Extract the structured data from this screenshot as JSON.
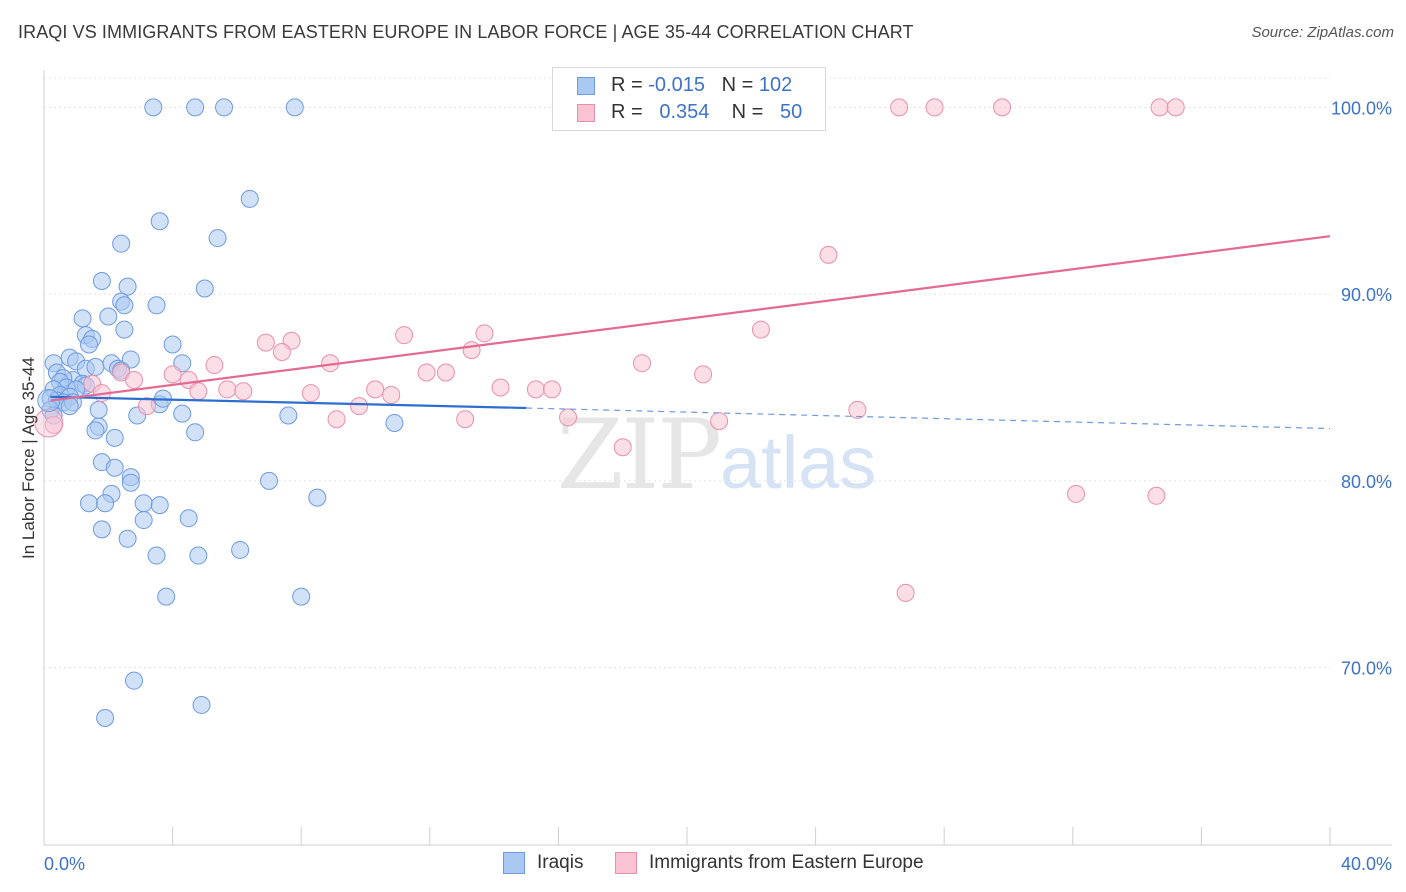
{
  "header": {
    "title": "IRAQI VS IMMIGRANTS FROM EASTERN EUROPE IN LABOR FORCE | AGE 35-44 CORRELATION CHART",
    "source": "Source: ZipAtlas.com"
  },
  "watermark": {
    "zip": "ZIP",
    "atlas": "atlas"
  },
  "legend": {
    "rows": [
      {
        "r_label": "R =",
        "r_value": "-0.015",
        "n_label": "N =",
        "n_value": "102",
        "color": "#a9c8f2",
        "border": "#6e9be0"
      },
      {
        "r_label": "R =",
        "r_value": "0.354",
        "n_label": "N =",
        "n_value": "50",
        "color": "#f9c3d4",
        "border": "#e890ab"
      }
    ]
  },
  "bottom_legend": {
    "items": [
      {
        "label": "Iraqis",
        "color": "#a9c8f2",
        "border": "#6e9be0"
      },
      {
        "label": "Immigrants from Eastern Europe",
        "color": "#f9c3d4",
        "border": "#e890ab"
      }
    ]
  },
  "chart_data": {
    "type": "scatter",
    "title": "IRAQI VS IMMIGRANTS FROM EASTERN EUROPE IN LABOR FORCE | AGE 35-44 CORRELATION CHART",
    "xlabel": "",
    "ylabel": "In Labor Force | Age 35-44",
    "xlim": [
      0,
      40
    ],
    "ylim": [
      60.5,
      102
    ],
    "x_tick_labels": [
      {
        "value": 0,
        "label": "0.0%"
      },
      {
        "value": 40,
        "label": "40.0%"
      }
    ],
    "y_tick_labels": [
      {
        "value": 100,
        "label": "100.0%"
      },
      {
        "value": 90,
        "label": "90.0%"
      },
      {
        "value": 80,
        "label": "80.0%"
      },
      {
        "value": 70,
        "label": "70.0%"
      }
    ],
    "grid": true,
    "series": [
      {
        "name": "Iraqis",
        "color": "#6e9be0",
        "fill": "#a9c8f2",
        "trend": {
          "x0": 0.2,
          "y0": 84.5,
          "x1": 15,
          "y1": 83.9,
          "dash_to_x": 40,
          "dash_to_y": 82.8
        },
        "points": [
          [
            3.4,
            100
          ],
          [
            4.7,
            100
          ],
          [
            5.6,
            100
          ],
          [
            7.8,
            100
          ],
          [
            6.4,
            95.1
          ],
          [
            3.6,
            93.9
          ],
          [
            5.4,
            93
          ],
          [
            2.4,
            92.7
          ],
          [
            1.8,
            90.7
          ],
          [
            2.6,
            90.4
          ],
          [
            5.0,
            90.3
          ],
          [
            2.4,
            89.6
          ],
          [
            2.0,
            88.8
          ],
          [
            2.5,
            89.4
          ],
          [
            3.5,
            89.4
          ],
          [
            1.2,
            88.7
          ],
          [
            2.5,
            88.1
          ],
          [
            1.3,
            87.8
          ],
          [
            1.5,
            87.6
          ],
          [
            4.0,
            87.3
          ],
          [
            1.4,
            87.3
          ],
          [
            0.3,
            86.3
          ],
          [
            0.8,
            86.6
          ],
          [
            2.7,
            86.5
          ],
          [
            1.0,
            86.4
          ],
          [
            1.3,
            86.0
          ],
          [
            1.6,
            86.1
          ],
          [
            2.1,
            86.3
          ],
          [
            2.3,
            86.0
          ],
          [
            2.4,
            85.9
          ],
          [
            4.3,
            86.3
          ],
          [
            0.4,
            85.8
          ],
          [
            0.9,
            85.4
          ],
          [
            0.6,
            85.5
          ],
          [
            0.5,
            85.3
          ],
          [
            1.2,
            85.2
          ],
          [
            1.3,
            85.1
          ],
          [
            0.7,
            85.0
          ],
          [
            0.3,
            84.9
          ],
          [
            1.0,
            84.9
          ],
          [
            0.5,
            84.6
          ],
          [
            0.8,
            84.5
          ],
          [
            0.2,
            84.4
          ],
          [
            0.4,
            84.3
          ],
          [
            0.6,
            84.2
          ],
          [
            0.9,
            84.2
          ],
          [
            0.8,
            84.0
          ],
          [
            0.2,
            83.8
          ],
          [
            0.3,
            83.5
          ],
          [
            1.7,
            83.8
          ],
          [
            2.9,
            83.5
          ],
          [
            3.6,
            84.1
          ],
          [
            3.7,
            84.4
          ],
          [
            4.3,
            83.6
          ],
          [
            7.6,
            83.5
          ],
          [
            10.9,
            83.1
          ],
          [
            1.7,
            82.9
          ],
          [
            1.6,
            82.7
          ],
          [
            2.2,
            82.3
          ],
          [
            4.7,
            82.6
          ],
          [
            1.8,
            81.0
          ],
          [
            2.2,
            80.7
          ],
          [
            2.7,
            80.2
          ],
          [
            2.7,
            79.9
          ],
          [
            7.0,
            80.0
          ],
          [
            2.1,
            79.3
          ],
          [
            8.5,
            79.1
          ],
          [
            1.4,
            78.8
          ],
          [
            1.9,
            78.8
          ],
          [
            3.1,
            78.8
          ],
          [
            3.6,
            78.7
          ],
          [
            3.1,
            77.9
          ],
          [
            4.5,
            78.0
          ],
          [
            1.8,
            77.4
          ],
          [
            2.6,
            76.9
          ],
          [
            3.5,
            76.0
          ],
          [
            4.8,
            76.0
          ],
          [
            6.1,
            76.3
          ],
          [
            3.8,
            73.8
          ],
          [
            8.0,
            73.8
          ],
          [
            2.8,
            69.3
          ],
          [
            4.9,
            68.0
          ],
          [
            1.9,
            67.3
          ]
        ]
      },
      {
        "name": "Immigrants from Eastern Europe",
        "color": "#e890ab",
        "fill": "#f9c3d4",
        "trend": {
          "x0": 0.2,
          "y0": 84.3,
          "x1": 40,
          "y1": 93.1
        },
        "points": [
          [
            16.8,
            100
          ],
          [
            17.8,
            100
          ],
          [
            26.6,
            100
          ],
          [
            27.7,
            100
          ],
          [
            29.8,
            100
          ],
          [
            34.7,
            100
          ],
          [
            35.2,
            100
          ],
          [
            24.4,
            92.1
          ],
          [
            22.3,
            88.1
          ],
          [
            11.2,
            87.8
          ],
          [
            13.7,
            87.9
          ],
          [
            6.9,
            87.4
          ],
          [
            7.7,
            87.5
          ],
          [
            13.3,
            87.0
          ],
          [
            7.4,
            86.9
          ],
          [
            5.3,
            86.2
          ],
          [
            8.9,
            86.3
          ],
          [
            18.6,
            86.3
          ],
          [
            2.4,
            85.8
          ],
          [
            4.0,
            85.7
          ],
          [
            11.9,
            85.8
          ],
          [
            12.5,
            85.8
          ],
          [
            20.5,
            85.7
          ],
          [
            2.8,
            85.4
          ],
          [
            4.5,
            85.4
          ],
          [
            1.5,
            85.2
          ],
          [
            14.2,
            85.0
          ],
          [
            5.7,
            84.9
          ],
          [
            6.2,
            84.8
          ],
          [
            10.3,
            84.9
          ],
          [
            15.3,
            84.9
          ],
          [
            15.8,
            84.9
          ],
          [
            8.3,
            84.7
          ],
          [
            10.8,
            84.6
          ],
          [
            1.8,
            84.7
          ],
          [
            4.8,
            84.8
          ],
          [
            9.8,
            84.0
          ],
          [
            3.2,
            84.0
          ],
          [
            25.3,
            83.8
          ],
          [
            9.1,
            83.3
          ],
          [
            13.1,
            83.3
          ],
          [
            16.3,
            83.4
          ],
          [
            21.0,
            83.2
          ],
          [
            0.3,
            83.0
          ],
          [
            18.0,
            81.8
          ],
          [
            32.1,
            79.3
          ],
          [
            34.6,
            79.2
          ],
          [
            26.8,
            74.0
          ]
        ]
      }
    ]
  }
}
